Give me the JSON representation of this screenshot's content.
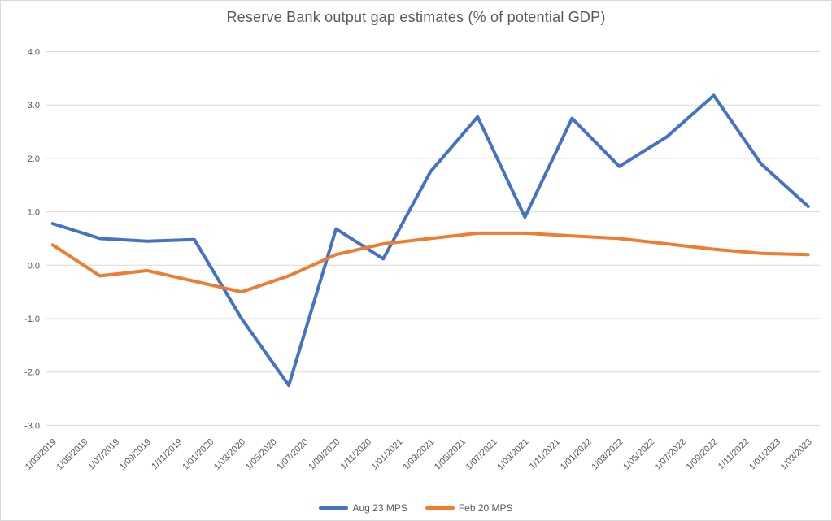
{
  "chart_data": {
    "type": "line",
    "title": "Reserve Bank output gap estimates (% of potential GDP)",
    "xlabel": "",
    "ylabel": "",
    "ylim": [
      -3.0,
      4.0
    ],
    "grid": true,
    "legend_position": "bottom",
    "y_tick_labels": [
      "4.0",
      "3.0",
      "2.0",
      "1.0",
      "0.0",
      "-1.0",
      "-2.0",
      "-3.0"
    ],
    "x_tick_labels": [
      "1/03/2019",
      "1/05/2019",
      "1/07/2019",
      "1/09/2019",
      "1/11/2019",
      "1/01/2020",
      "1/03/2020",
      "1/05/2020",
      "1/07/2020",
      "1/09/2020",
      "1/11/2020",
      "1/01/2021",
      "1/03/2021",
      "1/05/2021",
      "1/07/2021",
      "1/09/2021",
      "1/11/2021",
      "1/01/2022",
      "1/03/2022",
      "1/05/2022",
      "1/07/2022",
      "1/09/2022",
      "1/11/2022",
      "1/01/2023",
      "1/03/2023"
    ],
    "x_quarterly_dates": [
      "1/03/2019",
      "1/06/2019",
      "1/09/2019",
      "1/12/2019",
      "1/03/2020",
      "1/06/2020",
      "1/09/2020",
      "1/12/2020",
      "1/03/2021",
      "1/06/2021",
      "1/09/2021",
      "1/12/2021",
      "1/03/2022",
      "1/06/2022",
      "1/09/2022",
      "1/12/2022",
      "1/03/2023"
    ],
    "x_months_from_start": [
      0,
      3,
      6,
      9,
      12,
      15,
      18,
      21,
      24,
      27,
      30,
      33,
      36,
      39,
      42,
      45,
      48
    ],
    "series": [
      {
        "name": "Aug 23 MPS",
        "color": "#4472C4",
        "values": [
          0.78,
          0.5,
          0.45,
          0.48,
          -1.0,
          -2.25,
          0.68,
          0.12,
          1.75,
          2.78,
          0.9,
          2.75,
          1.85,
          2.4,
          3.18,
          1.9,
          1.1
        ]
      },
      {
        "name": "Feb 20 MPS",
        "color": "#ED7D31",
        "values": [
          0.38,
          -0.2,
          -0.1,
          -0.3,
          -0.5,
          -0.2,
          0.2,
          0.4,
          0.5,
          0.6,
          0.6,
          0.55,
          0.5,
          0.4,
          0.3,
          0.22,
          0.2
        ]
      }
    ],
    "colors": {
      "grid": "#D9D9D9",
      "text": "#595959",
      "border": "#D9D9D9",
      "background": "#FFFFFF"
    }
  }
}
